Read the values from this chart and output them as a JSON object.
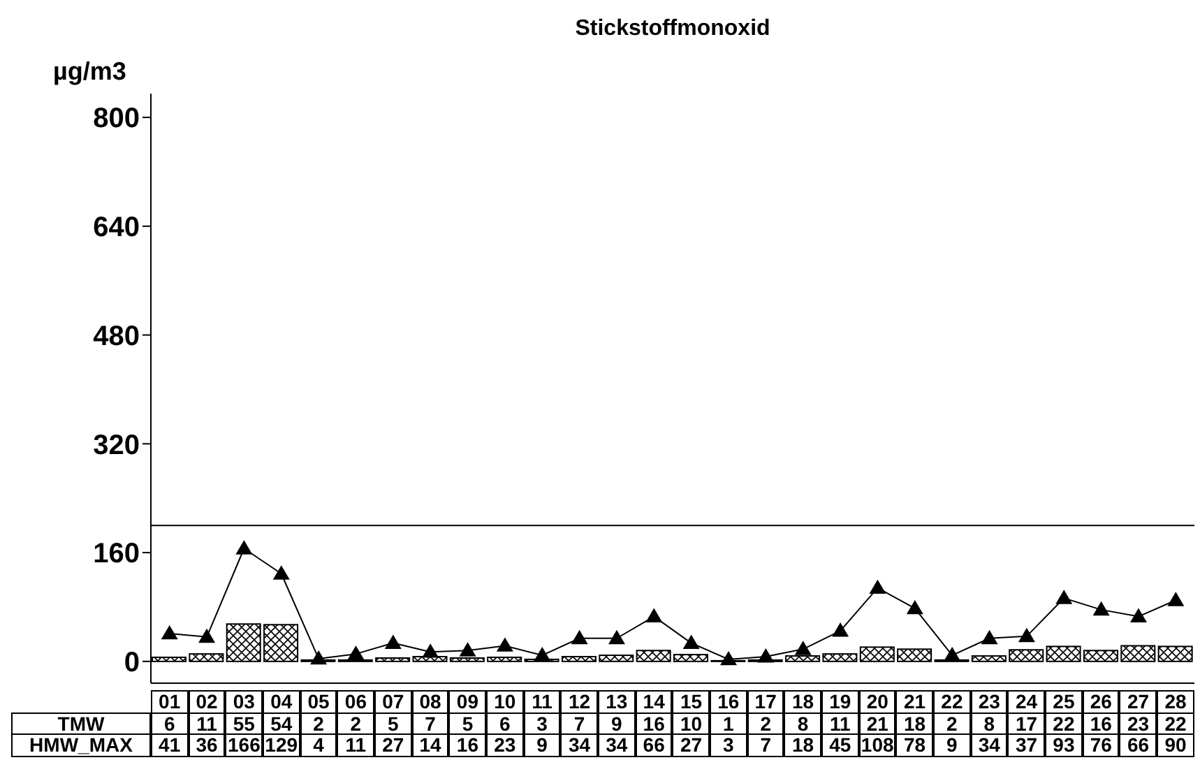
{
  "chart_data": {
    "type": "bar",
    "title": "Stickstoffmonoxid",
    "ylabel": "µg/m3",
    "categories": [
      "01",
      "02",
      "03",
      "04",
      "05",
      "06",
      "07",
      "08",
      "09",
      "10",
      "11",
      "12",
      "13",
      "14",
      "15",
      "16",
      "17",
      "18",
      "19",
      "20",
      "21",
      "22",
      "23",
      "24",
      "25",
      "26",
      "27",
      "28"
    ],
    "series": [
      {
        "name": "TMW",
        "color": "#000000",
        "values": [
          6,
          11,
          55,
          54,
          2,
          2,
          5,
          7,
          5,
          6,
          3,
          7,
          9,
          16,
          10,
          1,
          2,
          8,
          11,
          21,
          18,
          2,
          8,
          17,
          22,
          16,
          23,
          22
        ]
      },
      {
        "name": "HMW_MAX",
        "type": "line",
        "color": "#000000",
        "marker": "triangle",
        "values": [
          41,
          36,
          166,
          129,
          4,
          11,
          27,
          14,
          16,
          23,
          9,
          34,
          34,
          66,
          27,
          3,
          7,
          18,
          45,
          108,
          78,
          9,
          34,
          37,
          93,
          76,
          66,
          90
        ]
      }
    ],
    "ylim": [
      -32,
      835
    ],
    "yticks": [
      0,
      160,
      320,
      480,
      640,
      800
    ],
    "ref_lines": [
      {
        "axis": "y",
        "value": 200,
        "color": "#000000"
      }
    ],
    "data_labels": true,
    "legend": "bottom",
    "grid": false
  }
}
